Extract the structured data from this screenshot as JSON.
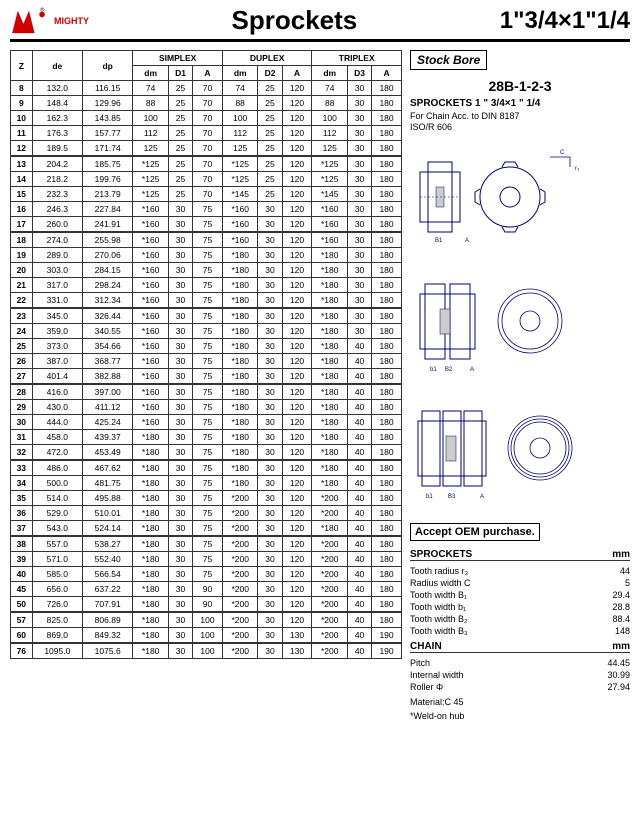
{
  "header": {
    "brand": "MIGHTY",
    "title": "Sprockets",
    "size": "1\"3/4×1\"1/4"
  },
  "table": {
    "group_headers": [
      "SIMPLEX",
      "DUPLEX",
      "TRIPLEX"
    ],
    "sub_headers": [
      "Z",
      "de",
      "dp",
      "dm",
      "D1",
      "A",
      "dm",
      "D2",
      "A",
      "dm",
      "D3",
      "A"
    ],
    "rows": [
      [
        "8",
        "132.0",
        "116.15",
        "74",
        "25",
        "70",
        "74",
        "25",
        "120",
        "74",
        "30",
        "180"
      ],
      [
        "9",
        "148.4",
        "129.96",
        "88",
        "25",
        "70",
        "88",
        "25",
        "120",
        "88",
        "30",
        "180"
      ],
      [
        "10",
        "162.3",
        "143.85",
        "100",
        "25",
        "70",
        "100",
        "25",
        "120",
        "100",
        "30",
        "180"
      ],
      [
        "11",
        "176.3",
        "157.77",
        "112",
        "25",
        "70",
        "112",
        "25",
        "120",
        "112",
        "30",
        "180"
      ],
      [
        "12",
        "189.5",
        "171.74",
        "125",
        "25",
        "70",
        "125",
        "25",
        "120",
        "125",
        "30",
        "180"
      ],
      [
        "13",
        "204.2",
        "185.75",
        "*125",
        "25",
        "70",
        "*125",
        "25",
        "120",
        "*125",
        "30",
        "180"
      ],
      [
        "14",
        "218.2",
        "199.76",
        "*125",
        "25",
        "70",
        "*125",
        "25",
        "120",
        "*125",
        "30",
        "180"
      ],
      [
        "15",
        "232.3",
        "213.79",
        "*125",
        "25",
        "70",
        "*145",
        "25",
        "120",
        "*145",
        "30",
        "180"
      ],
      [
        "16",
        "246.3",
        "227.84",
        "*160",
        "30",
        "75",
        "*160",
        "30",
        "120",
        "*160",
        "30",
        "180"
      ],
      [
        "17",
        "260.0",
        "241.91",
        "*160",
        "30",
        "75",
        "*160",
        "30",
        "120",
        "*160",
        "30",
        "180"
      ],
      [
        "18",
        "274.0",
        "255.98",
        "*160",
        "30",
        "75",
        "*160",
        "30",
        "120",
        "*160",
        "30",
        "180"
      ],
      [
        "19",
        "289.0",
        "270.06",
        "*160",
        "30",
        "75",
        "*180",
        "30",
        "120",
        "*180",
        "30",
        "180"
      ],
      [
        "20",
        "303.0",
        "284.15",
        "*160",
        "30",
        "75",
        "*180",
        "30",
        "120",
        "*180",
        "30",
        "180"
      ],
      [
        "21",
        "317.0",
        "298.24",
        "*160",
        "30",
        "75",
        "*180",
        "30",
        "120",
        "*180",
        "30",
        "180"
      ],
      [
        "22",
        "331.0",
        "312.34",
        "*160",
        "30",
        "75",
        "*180",
        "30",
        "120",
        "*180",
        "30",
        "180"
      ],
      [
        "23",
        "345.0",
        "326.44",
        "*160",
        "30",
        "75",
        "*180",
        "30",
        "120",
        "*180",
        "30",
        "180"
      ],
      [
        "24",
        "359.0",
        "340.55",
        "*160",
        "30",
        "75",
        "*180",
        "30",
        "120",
        "*180",
        "30",
        "180"
      ],
      [
        "25",
        "373.0",
        "354.66",
        "*160",
        "30",
        "75",
        "*180",
        "30",
        "120",
        "*180",
        "40",
        "180"
      ],
      [
        "26",
        "387.0",
        "368.77",
        "*160",
        "30",
        "75",
        "*180",
        "30",
        "120",
        "*180",
        "40",
        "180"
      ],
      [
        "27",
        "401.4",
        "382.88",
        "*160",
        "30",
        "75",
        "*180",
        "30",
        "120",
        "*180",
        "40",
        "180"
      ],
      [
        "28",
        "416.0",
        "397.00",
        "*160",
        "30",
        "75",
        "*180",
        "30",
        "120",
        "*180",
        "40",
        "180"
      ],
      [
        "29",
        "430.0",
        "411.12",
        "*160",
        "30",
        "75",
        "*180",
        "30",
        "120",
        "*180",
        "40",
        "180"
      ],
      [
        "30",
        "444.0",
        "425.24",
        "*160",
        "30",
        "75",
        "*180",
        "30",
        "120",
        "*180",
        "40",
        "180"
      ],
      [
        "31",
        "458.0",
        "439.37",
        "*180",
        "30",
        "75",
        "*180",
        "30",
        "120",
        "*180",
        "40",
        "180"
      ],
      [
        "32",
        "472.0",
        "453.49",
        "*180",
        "30",
        "75",
        "*180",
        "30",
        "120",
        "*180",
        "40",
        "180"
      ],
      [
        "33",
        "486.0",
        "467.62",
        "*180",
        "30",
        "75",
        "*180",
        "30",
        "120",
        "*180",
        "40",
        "180"
      ],
      [
        "34",
        "500.0",
        "481.75",
        "*180",
        "30",
        "75",
        "*180",
        "30",
        "120",
        "*180",
        "40",
        "180"
      ],
      [
        "35",
        "514.0",
        "495.88",
        "*180",
        "30",
        "75",
        "*200",
        "30",
        "120",
        "*200",
        "40",
        "180"
      ],
      [
        "36",
        "529.0",
        "510.01",
        "*180",
        "30",
        "75",
        "*200",
        "30",
        "120",
        "*200",
        "40",
        "180"
      ],
      [
        "37",
        "543.0",
        "524.14",
        "*180",
        "30",
        "75",
        "*200",
        "30",
        "120",
        "*180",
        "40",
        "180"
      ],
      [
        "38",
        "557.0",
        "538.27",
        "*180",
        "30",
        "75",
        "*200",
        "30",
        "120",
        "*200",
        "40",
        "180"
      ],
      [
        "39",
        "571.0",
        "552.40",
        "*180",
        "30",
        "75",
        "*200",
        "30",
        "120",
        "*200",
        "40",
        "180"
      ],
      [
        "40",
        "585.0",
        "566.54",
        "*180",
        "30",
        "75",
        "*200",
        "30",
        "120",
        "*200",
        "40",
        "180"
      ],
      [
        "45",
        "656.0",
        "637.22",
        "*180",
        "30",
        "90",
        "*200",
        "30",
        "120",
        "*200",
        "40",
        "180"
      ],
      [
        "50",
        "726.0",
        "707.91",
        "*180",
        "30",
        "90",
        "*200",
        "30",
        "120",
        "*200",
        "40",
        "180"
      ],
      [
        "57",
        "825.0",
        "806.89",
        "*180",
        "30",
        "100",
        "*200",
        "30",
        "120",
        "*200",
        "40",
        "180"
      ],
      [
        "60",
        "869.0",
        "849.32",
        "*180",
        "30",
        "100",
        "*200",
        "30",
        "130",
        "*200",
        "40",
        "190"
      ],
      [
        "76",
        "1095.0",
        "1075.6",
        "*180",
        "30",
        "100",
        "*200",
        "30",
        "130",
        "*200",
        "40",
        "190"
      ]
    ],
    "group_breaks": [
      5,
      10,
      15,
      20,
      25,
      30,
      35,
      37
    ]
  },
  "right": {
    "stock_bore": "Stock Bore",
    "product_code": "28B-1-2-3",
    "spec_title": "SPROCKETS 1 \" 3/4×1 \" 1/4",
    "chain_note": "For Chain  Acc. to  DIN 8187",
    "iso_note": "ISO/R 606",
    "accept_oem": "Accept OEM purchase.",
    "sprockets_header": "SPROCKETS",
    "mm_header": "mm",
    "sprocket_specs": [
      [
        "Tooth radius r₃",
        "44"
      ],
      [
        "Radius width C",
        "5"
      ],
      [
        "Tooth width B₁",
        "29.4"
      ],
      [
        "Tooth width b₁",
        "28.8"
      ],
      [
        "Tooth width B₂",
        "88.4"
      ],
      [
        "Tooth width B₃",
        "148"
      ]
    ],
    "chain_header": "CHAIN",
    "chain_specs": [
      [
        "Pitch",
        "44.45"
      ],
      [
        "Internal width",
        "30.99"
      ],
      [
        "Roller Φ",
        "27.94"
      ]
    ],
    "material": "Material:C 45",
    "weld_note": "*Weld-on hub"
  }
}
